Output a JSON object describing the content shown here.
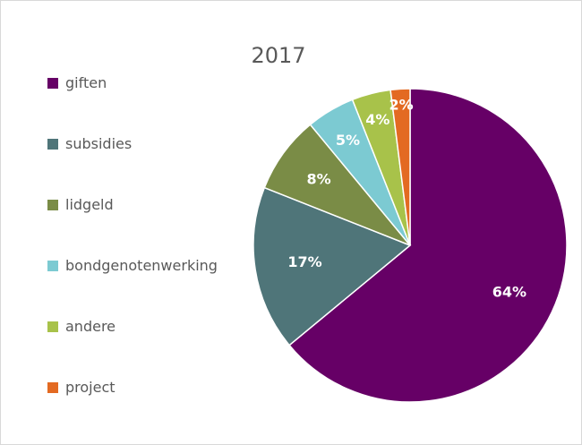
{
  "chart_data": {
    "type": "pie",
    "title": "2017",
    "legend_position": "left",
    "slices": [
      {
        "label": "giften",
        "value": 64,
        "display": "64%",
        "color": "#660066"
      },
      {
        "label": "subsidies",
        "value": 17,
        "display": "17%",
        "color": "#4F7579"
      },
      {
        "label": "lidgeld",
        "value": 8,
        "display": "8%",
        "color": "#7A8C46"
      },
      {
        "label": "bondgenotenwerking",
        "value": 5,
        "display": "5%",
        "color": "#7CCAD2"
      },
      {
        "label": "andere",
        "value": 4,
        "display": "4%",
        "color": "#A8C24A"
      },
      {
        "label": "project",
        "value": 2,
        "display": "2%",
        "color": "#E36A22"
      }
    ]
  }
}
